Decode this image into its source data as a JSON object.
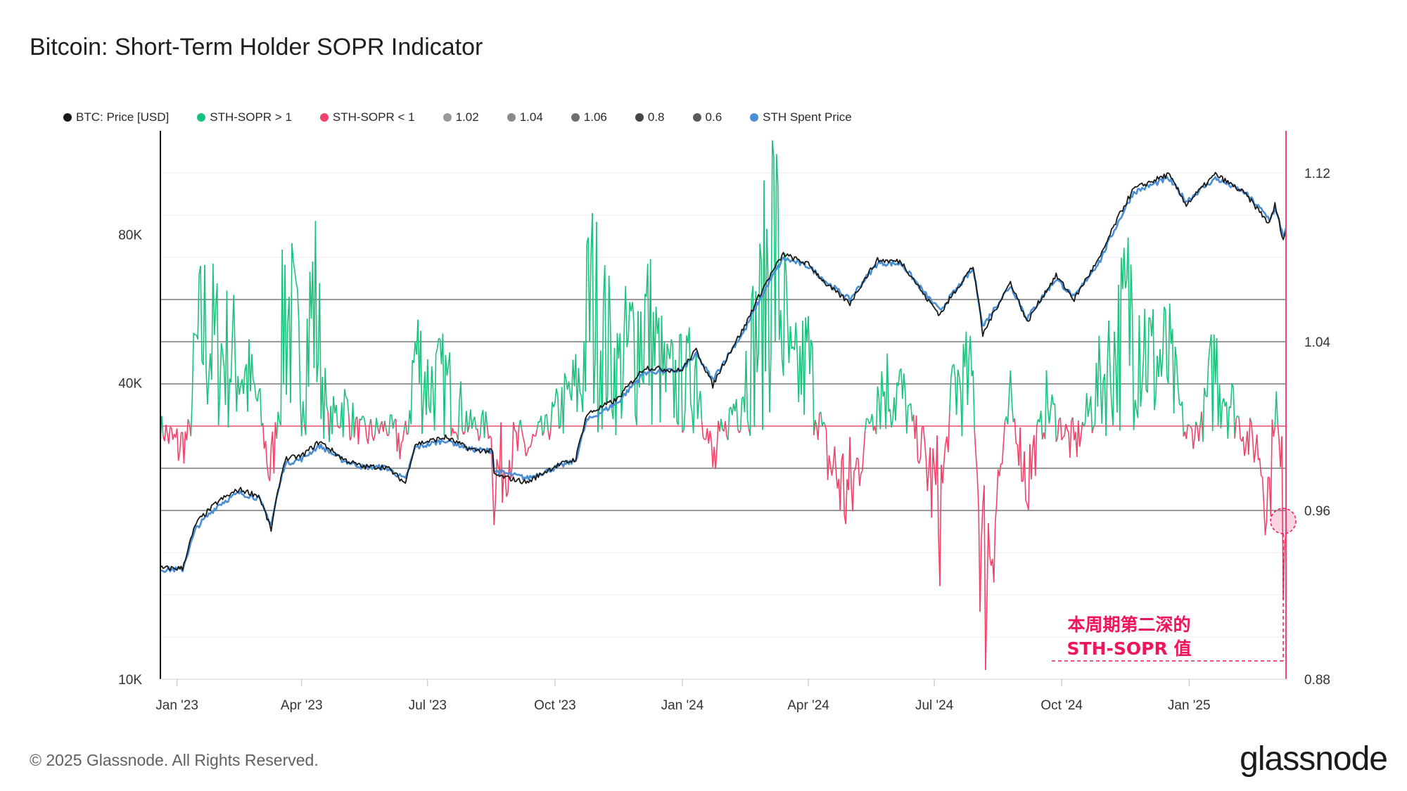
{
  "title": "Bitcoin: Short-Term Holder SOPR Indicator",
  "footer": "© 2025 Glassnode. All Rights Reserved.",
  "brand": "glassnode",
  "annotation": {
    "line1": "本周期第二深的",
    "line2": "STH-SOPR 值",
    "color": "#f0145a"
  },
  "legend": [
    {
      "label": "BTC: Price [USD]",
      "color": "#1a1a1a"
    },
    {
      "label": "STH-SOPR > 1",
      "color": "#19c37d"
    },
    {
      "label": "STH-SOPR < 1",
      "color": "#f2426a"
    },
    {
      "label": "1.02",
      "color": "#9a9a9a"
    },
    {
      "label": "1.04",
      "color": "#8a8a8a"
    },
    {
      "label": "1.06",
      "color": "#6e6e6e"
    },
    {
      "label": "0.8",
      "color": "#444444"
    },
    {
      "label": "0.6",
      "color": "#5a5a5a"
    },
    {
      "label": "STH Spent Price",
      "color": "#4a8fd6"
    }
  ],
  "chart_data": {
    "type": "line",
    "x_range": [
      "2022-12-20",
      "2025-03-12"
    ],
    "x_ticks": [
      "Jan '23",
      "Apr '23",
      "Jul '23",
      "Oct '23",
      "Jan '24",
      "Apr '24",
      "Jul '24",
      "Oct '24",
      "Jan '25"
    ],
    "left_axis": {
      "label": "",
      "scale": "log",
      "range": [
        10000,
        130000
      ],
      "ticks": [
        "10K",
        "40K",
        "80K"
      ],
      "tick_values": [
        10000,
        40000,
        80000
      ]
    },
    "right_axis": {
      "label": "",
      "scale": "linear",
      "range": [
        0.88,
        1.14
      ],
      "ticks": [
        "0.88",
        "0.96",
        "1.04",
        "1.12"
      ],
      "tick_values": [
        0.88,
        0.96,
        1.04,
        1.12
      ]
    },
    "reference_lines": [
      {
        "name": "1.06",
        "value": 1.06,
        "color": "#9a9a9a"
      },
      {
        "name": "1.04",
        "value": 1.04,
        "color": "#9a9a9a"
      },
      {
        "name": "1.02",
        "value": 1.02,
        "color": "#9a9a9a"
      },
      {
        "name": "1",
        "value": 1.0,
        "color": "#f07a90"
      },
      {
        "name": "0.98",
        "value": 0.98,
        "color": "#9a9a9a"
      },
      {
        "name": "0.96",
        "value": 0.96,
        "color": "#9a9a9a"
      }
    ],
    "gridlines": true,
    "legend_position": "top-left",
    "series": [
      {
        "name": "BTC: Price [USD]",
        "axis": "left",
        "color": "#1a1a1a",
        "points": [
          [
            "2022-12-20",
            16800
          ],
          [
            "2023-01-05",
            16800
          ],
          [
            "2023-01-15",
            20800
          ],
          [
            "2023-01-31",
            23000
          ],
          [
            "2023-02-15",
            24300
          ],
          [
            "2023-03-01",
            23600
          ],
          [
            "2023-03-10",
            20100
          ],
          [
            "2023-03-20",
            28000
          ],
          [
            "2023-04-01",
            28400
          ],
          [
            "2023-04-14",
            30400
          ],
          [
            "2023-05-01",
            28000
          ],
          [
            "2023-05-15",
            27000
          ],
          [
            "2023-06-01",
            27000
          ],
          [
            "2023-06-15",
            25000
          ],
          [
            "2023-06-22",
            30000
          ],
          [
            "2023-07-14",
            31000
          ],
          [
            "2023-08-01",
            29300
          ],
          [
            "2023-08-17",
            29000
          ],
          [
            "2023-08-18",
            26000
          ],
          [
            "2023-09-11",
            25100
          ],
          [
            "2023-09-30",
            27000
          ],
          [
            "2023-10-16",
            28000
          ],
          [
            "2023-10-24",
            34500
          ],
          [
            "2023-11-15",
            37000
          ],
          [
            "2023-12-05",
            43000
          ],
          [
            "2023-12-31",
            42300
          ],
          [
            "2024-01-11",
            46600
          ],
          [
            "2024-01-23",
            39500
          ],
          [
            "2024-02-15",
            52000
          ],
          [
            "2024-02-28",
            62000
          ],
          [
            "2024-03-14",
            73000
          ],
          [
            "2024-04-01",
            69600
          ],
          [
            "2024-04-15",
            63000
          ],
          [
            "2024-05-01",
            58000
          ],
          [
            "2024-05-21",
            71000
          ],
          [
            "2024-06-07",
            70500
          ],
          [
            "2024-06-24",
            60000
          ],
          [
            "2024-07-05",
            55000
          ],
          [
            "2024-07-29",
            69000
          ],
          [
            "2024-08-05",
            50000
          ],
          [
            "2024-08-25",
            64000
          ],
          [
            "2024-09-06",
            53000
          ],
          [
            "2024-09-27",
            66000
          ],
          [
            "2024-10-10",
            59000
          ],
          [
            "2024-10-29",
            72000
          ],
          [
            "2024-11-12",
            88000
          ],
          [
            "2024-11-22",
            99000
          ],
          [
            "2024-12-17",
            106000
          ],
          [
            "2024-12-30",
            92000
          ],
          [
            "2025-01-20",
            106000
          ],
          [
            "2025-02-10",
            97000
          ],
          [
            "2025-02-28",
            84000
          ],
          [
            "2025-03-04",
            92000
          ],
          [
            "2025-03-10",
            78000
          ],
          [
            "2025-03-12",
            82000
          ]
        ]
      },
      {
        "name": "STH Spent Price",
        "axis": "left",
        "color": "#4a8fd6",
        "points": [
          [
            "2022-12-20",
            16700
          ],
          [
            "2023-01-05",
            16700
          ],
          [
            "2023-01-15",
            20300
          ],
          [
            "2023-01-31",
            22600
          ],
          [
            "2023-02-15",
            23900
          ],
          [
            "2023-03-01",
            23300
          ],
          [
            "2023-03-10",
            20600
          ],
          [
            "2023-03-20",
            27400
          ],
          [
            "2023-04-01",
            28000
          ],
          [
            "2023-04-14",
            29800
          ],
          [
            "2023-05-01",
            27800
          ],
          [
            "2023-05-15",
            27000
          ],
          [
            "2023-06-01",
            26900
          ],
          [
            "2023-06-15",
            25400
          ],
          [
            "2023-06-22",
            29500
          ],
          [
            "2023-07-14",
            30600
          ],
          [
            "2023-08-01",
            29300
          ],
          [
            "2023-08-17",
            29100
          ],
          [
            "2023-08-18",
            26500
          ],
          [
            "2023-09-11",
            25600
          ],
          [
            "2023-09-30",
            26800
          ],
          [
            "2023-10-16",
            27800
          ],
          [
            "2023-10-24",
            33500
          ],
          [
            "2023-11-15",
            36400
          ],
          [
            "2023-12-05",
            42000
          ],
          [
            "2023-12-31",
            42400
          ],
          [
            "2024-01-11",
            45600
          ],
          [
            "2024-01-23",
            40500
          ],
          [
            "2024-02-15",
            51000
          ],
          [
            "2024-02-28",
            60500
          ],
          [
            "2024-03-14",
            71500
          ],
          [
            "2024-04-01",
            69000
          ],
          [
            "2024-04-15",
            63800
          ],
          [
            "2024-05-01",
            59000
          ],
          [
            "2024-05-21",
            70000
          ],
          [
            "2024-06-07",
            69800
          ],
          [
            "2024-06-24",
            60800
          ],
          [
            "2024-07-05",
            56000
          ],
          [
            "2024-07-29",
            68000
          ],
          [
            "2024-08-05",
            52000
          ],
          [
            "2024-08-25",
            63000
          ],
          [
            "2024-09-06",
            54000
          ],
          [
            "2024-09-27",
            65000
          ],
          [
            "2024-10-10",
            59500
          ],
          [
            "2024-10-29",
            71000
          ],
          [
            "2024-11-12",
            86000
          ],
          [
            "2024-11-22",
            97500
          ],
          [
            "2024-12-17",
            104000
          ],
          [
            "2024-12-30",
            93500
          ],
          [
            "2025-01-20",
            104000
          ],
          [
            "2025-02-10",
            97500
          ],
          [
            "2025-02-28",
            86000
          ],
          [
            "2025-03-04",
            90000
          ],
          [
            "2025-03-10",
            80000
          ],
          [
            "2025-03-12",
            82000
          ]
        ]
      },
      {
        "name": "STH-SOPR",
        "axis": "right",
        "color_above": "#19c37d",
        "color_below": "#f2426a",
        "points": [
          [
            "2022-12-20",
            1.0
          ],
          [
            "2023-01-01",
            0.99
          ],
          [
            "2023-01-10",
            0.995
          ],
          [
            "2023-01-14",
            1.03
          ],
          [
            "2023-01-20",
            1.045
          ],
          [
            "2023-02-01",
            1.035
          ],
          [
            "2023-02-15",
            1.03
          ],
          [
            "2023-03-01",
            1.01
          ],
          [
            "2023-03-10",
            0.975
          ],
          [
            "2023-03-15",
            1.01
          ],
          [
            "2023-03-20",
            1.06
          ],
          [
            "2023-04-01",
            1.025
          ],
          [
            "2023-04-10",
            1.06
          ],
          [
            "2023-04-20",
            1.0
          ],
          [
            "2023-05-01",
            1.01
          ],
          [
            "2023-05-15",
            0.995
          ],
          [
            "2023-06-01",
            1.0
          ],
          [
            "2023-06-15",
            0.99
          ],
          [
            "2023-06-22",
            1.035
          ],
          [
            "2023-07-01",
            1.02
          ],
          [
            "2023-07-14",
            1.02
          ],
          [
            "2023-08-01",
            1.0
          ],
          [
            "2023-08-15",
            1.0
          ],
          [
            "2023-08-18",
            0.975
          ],
          [
            "2023-09-01",
            0.99
          ],
          [
            "2023-09-15",
            0.99
          ],
          [
            "2023-10-01",
            1.005
          ],
          [
            "2023-10-20",
            1.02
          ],
          [
            "2023-10-26",
            1.06
          ],
          [
            "2023-11-15",
            1.025
          ],
          [
            "2023-12-05",
            1.05
          ],
          [
            "2023-12-20",
            1.02
          ],
          [
            "2024-01-05",
            1.02
          ],
          [
            "2024-01-11",
            1.03
          ],
          [
            "2024-01-23",
            0.98
          ],
          [
            "2024-02-10",
            1.015
          ],
          [
            "2024-02-28",
            1.05
          ],
          [
            "2024-03-05",
            1.095
          ],
          [
            "2024-03-12",
            1.06
          ],
          [
            "2024-03-20",
            1.02
          ],
          [
            "2024-04-01",
            1.03
          ],
          [
            "2024-04-15",
            0.985
          ],
          [
            "2024-05-01",
            0.965
          ],
          [
            "2024-05-21",
            1.02
          ],
          [
            "2024-06-07",
            1.015
          ],
          [
            "2024-06-24",
            0.985
          ],
          [
            "2024-07-05",
            0.96
          ],
          [
            "2024-07-15",
            1.02
          ],
          [
            "2024-07-29",
            1.02
          ],
          [
            "2024-08-05",
            0.925
          ],
          [
            "2024-08-25",
            1.01
          ],
          [
            "2024-09-06",
            0.975
          ],
          [
            "2024-09-20",
            1.01
          ],
          [
            "2024-10-10",
            0.99
          ],
          [
            "2024-10-29",
            1.02
          ],
          [
            "2024-11-12",
            1.04
          ],
          [
            "2024-11-22",
            1.06
          ],
          [
            "2024-12-05",
            1.03
          ],
          [
            "2024-12-17",
            1.03
          ],
          [
            "2024-12-30",
            0.995
          ],
          [
            "2025-01-10",
            1.0
          ],
          [
            "2025-01-20",
            1.03
          ],
          [
            "2025-02-01",
            1.01
          ],
          [
            "2025-02-10",
            0.995
          ],
          [
            "2025-02-20",
            0.99
          ],
          [
            "2025-02-28",
            0.965
          ],
          [
            "2025-03-04",
            1.02
          ],
          [
            "2025-03-10",
            0.955
          ],
          [
            "2025-03-12",
            0.97
          ]
        ]
      }
    ],
    "highlight_point": [
      "2025-03-10",
      0.955
    ]
  }
}
